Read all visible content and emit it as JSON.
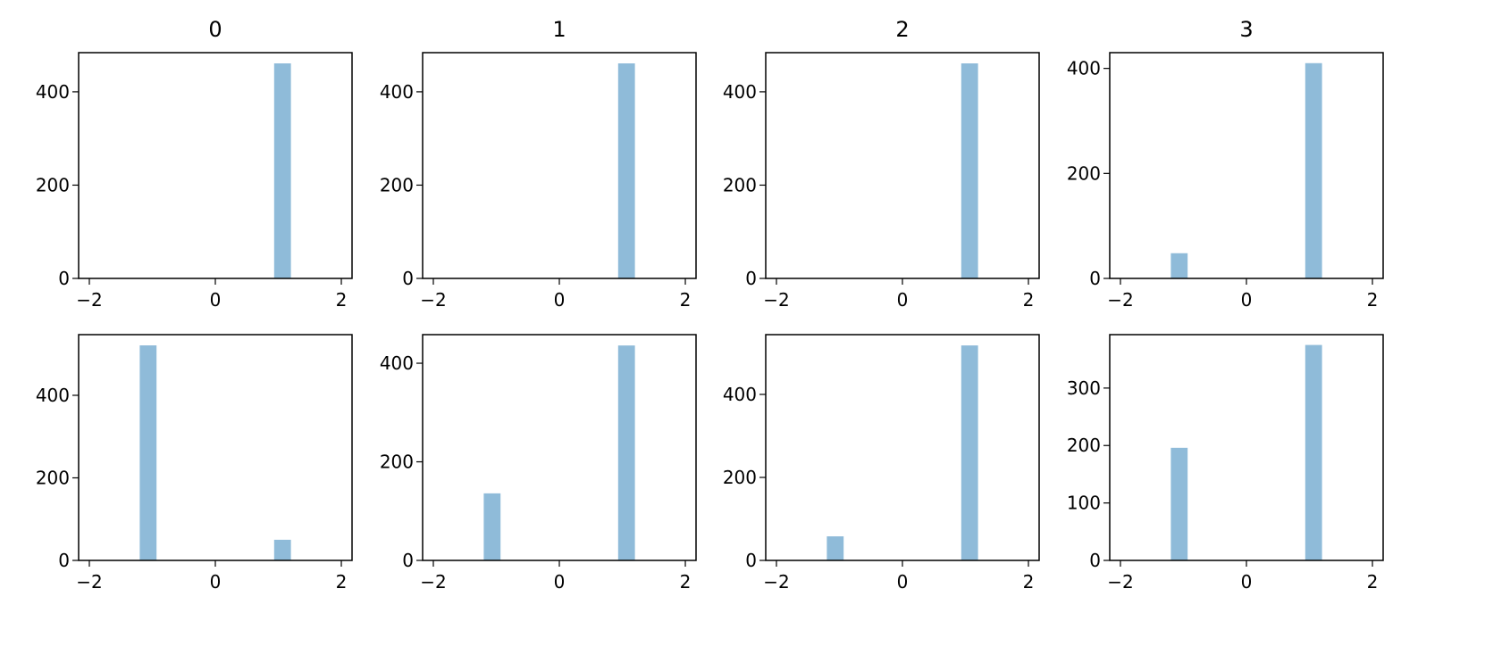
{
  "chart_data": [
    {
      "type": "histogram",
      "title": "0",
      "color": "#8fbbd9",
      "bins": [
        -1.2,
        -0.9333,
        -0.6667,
        -0.4,
        -0.1333,
        0.1333,
        0.4,
        0.6667,
        0.9333,
        1.2
      ],
      "values": [
        0,
        0,
        0,
        0,
        0,
        0,
        0,
        0,
        461
      ],
      "xlim": [
        -2.17,
        2.17
      ],
      "xticks": [
        {
          "value": -2,
          "label": "−2"
        },
        0,
        2
      ],
      "ylim": [
        0,
        484
      ],
      "yticks": [
        0,
        200,
        400
      ]
    },
    {
      "type": "histogram",
      "title": "1",
      "color": "#8fbbd9",
      "bins": [
        -1.2,
        -0.9333,
        -0.6667,
        -0.4,
        -0.1333,
        0.1333,
        0.4,
        0.6667,
        0.9333,
        1.2
      ],
      "values": [
        0,
        0,
        0,
        0,
        0,
        0,
        0,
        0,
        461
      ],
      "xlim": [
        -2.17,
        2.17
      ],
      "xticks": [
        {
          "value": -2,
          "label": "−2"
        },
        0,
        2
      ],
      "ylim": [
        0,
        484
      ],
      "yticks": [
        0,
        200,
        400
      ]
    },
    {
      "type": "histogram",
      "title": "2",
      "color": "#8fbbd9",
      "bins": [
        -1.2,
        -0.9333,
        -0.6667,
        -0.4,
        -0.1333,
        0.1333,
        0.4,
        0.6667,
        0.9333,
        1.2
      ],
      "values": [
        0,
        0,
        0,
        0,
        0,
        0,
        0,
        0,
        461
      ],
      "xlim": [
        -2.17,
        2.17
      ],
      "xticks": [
        {
          "value": -2,
          "label": "−2"
        },
        0,
        2
      ],
      "ylim": [
        0,
        484
      ],
      "yticks": [
        0,
        200,
        400
      ]
    },
    {
      "type": "histogram",
      "title": "3",
      "color": "#8fbbd9",
      "bins": [
        -1.2,
        -0.9333,
        -0.6667,
        -0.4,
        -0.1333,
        0.1333,
        0.4,
        0.6667,
        0.9333,
        1.2
      ],
      "values": [
        48,
        0,
        0,
        0,
        0,
        0,
        0,
        0,
        410
      ],
      "xlim": [
        -2.17,
        2.17
      ],
      "xticks": [
        {
          "value": -2,
          "label": "−2"
        },
        0,
        2
      ],
      "ylim": [
        0,
        430
      ],
      "yticks": [
        0,
        200,
        400
      ]
    },
    {
      "type": "histogram",
      "color": "#8fbbd9",
      "bins": [
        -1.2,
        -0.9333,
        -0.6667,
        -0.4,
        -0.1333,
        0.1333,
        0.4,
        0.6667,
        0.9333,
        1.2
      ],
      "values": [
        521,
        0,
        0,
        0,
        0,
        0,
        0,
        0,
        50
      ],
      "xlim": [
        -2.17,
        2.17
      ],
      "xticks": [
        {
          "value": -2,
          "label": "−2"
        },
        0,
        2
      ],
      "ylim": [
        0,
        547
      ],
      "yticks": [
        0,
        200,
        400
      ]
    },
    {
      "type": "histogram",
      "color": "#8fbbd9",
      "bins": [
        -1.2,
        -0.9333,
        -0.6667,
        -0.4,
        -0.1333,
        0.1333,
        0.4,
        0.6667,
        0.9333,
        1.2
      ],
      "values": [
        136,
        0,
        0,
        0,
        0,
        0,
        0,
        0,
        436
      ],
      "xlim": [
        -2.17,
        2.17
      ],
      "xticks": [
        {
          "value": -2,
          "label": "−2"
        },
        0,
        2
      ],
      "ylim": [
        0,
        458
      ],
      "yticks": [
        0,
        200,
        400
      ]
    },
    {
      "type": "histogram",
      "color": "#8fbbd9",
      "bins": [
        -1.2,
        -0.9333,
        -0.6667,
        -0.4,
        -0.1333,
        0.1333,
        0.4,
        0.6667,
        0.9333,
        1.2
      ],
      "values": [
        58,
        0,
        0,
        0,
        0,
        0,
        0,
        0,
        518
      ],
      "xlim": [
        -2.17,
        2.17
      ],
      "xticks": [
        {
          "value": -2,
          "label": "−2"
        },
        0,
        2
      ],
      "ylim": [
        0,
        544
      ],
      "yticks": [
        0,
        200,
        400
      ]
    },
    {
      "type": "histogram",
      "color": "#8fbbd9",
      "bins": [
        -1.2,
        -0.9333,
        -0.6667,
        -0.4,
        -0.1333,
        0.1333,
        0.4,
        0.6667,
        0.9333,
        1.2
      ],
      "values": [
        196,
        0,
        0,
        0,
        0,
        0,
        0,
        0,
        375
      ],
      "xlim": [
        -2.17,
        2.17
      ],
      "xticks": [
        {
          "value": -2,
          "label": "−2"
        },
        0,
        2
      ],
      "ylim": [
        0,
        393
      ],
      "yticks": [
        0,
        100,
        200,
        300
      ]
    }
  ]
}
